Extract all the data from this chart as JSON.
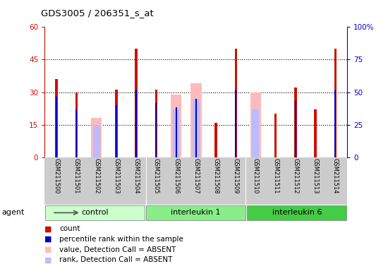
{
  "title": "GDS3005 / 206351_s_at",
  "samples": [
    "GSM211500",
    "GSM211501",
    "GSM211502",
    "GSM211503",
    "GSM211504",
    "GSM211505",
    "GSM211506",
    "GSM211507",
    "GSM211508",
    "GSM211509",
    "GSM211510",
    "GSM211511",
    "GSM211512",
    "GSM211513",
    "GSM211514"
  ],
  "red_count": [
    36,
    30,
    0,
    31,
    50,
    31,
    0,
    0,
    16,
    50,
    0,
    20,
    32,
    22,
    50
  ],
  "blue_rank": [
    28,
    22,
    0,
    24,
    31,
    25,
    23,
    27,
    0,
    31,
    0,
    0,
    26,
    0,
    31
  ],
  "pink_value": [
    0,
    0,
    18,
    0,
    0,
    0,
    29,
    34,
    0,
    0,
    30,
    0,
    0,
    0,
    0
  ],
  "lavender_rank": [
    0,
    0,
    15,
    0,
    0,
    0,
    22,
    27,
    0,
    0,
    22,
    0,
    0,
    0,
    0
  ],
  "ylim_left": [
    0,
    60
  ],
  "ylim_right": [
    0,
    100
  ],
  "yticks_left": [
    0,
    15,
    30,
    45,
    60
  ],
  "yticks_right": [
    0,
    25,
    50,
    75,
    100
  ],
  "ytick_labels_right": [
    "0",
    "25",
    "50",
    "75",
    "100%"
  ],
  "colors": {
    "red": "#cc1100",
    "blue": "#0000cc",
    "pink": "#ffbbbb",
    "lavender": "#bbbbff",
    "xbg": "#cccccc",
    "ctrl_bg": "#ccffcc",
    "il1_bg": "#88ee88",
    "il6_bg": "#44cc44"
  },
  "group_defs": [
    {
      "label": "control",
      "start": 0,
      "end": 5
    },
    {
      "label": "interleukin 1",
      "start": 5,
      "end": 10
    },
    {
      "label": "interleukin 6",
      "start": 10,
      "end": 15
    }
  ],
  "legend_items": [
    {
      "color": "#cc1100",
      "label": "count"
    },
    {
      "color": "#0000cc",
      "label": "percentile rank within the sample"
    },
    {
      "color": "#ffbbbb",
      "label": "value, Detection Call = ABSENT"
    },
    {
      "color": "#bbbbff",
      "label": "rank, Detection Call = ABSENT"
    }
  ]
}
